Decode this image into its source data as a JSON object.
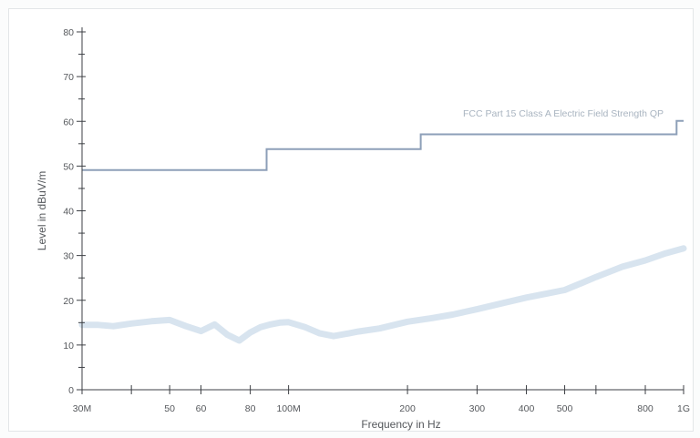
{
  "chart_data": {
    "type": "line",
    "xscale": "log",
    "xlim": [
      30000000,
      1000000000
    ],
    "ylim": [
      0,
      80
    ],
    "xlabel": "Frequency in Hz",
    "ylabel": "Level in dBuV/m",
    "yticks": [
      0,
      10,
      20,
      30,
      40,
      50,
      60,
      70,
      80
    ],
    "xticks": [
      {
        "value": 30000000,
        "label": "30M"
      },
      {
        "value": 40000000,
        "label": ""
      },
      {
        "value": 50000000,
        "label": "50"
      },
      {
        "value": 60000000,
        "label": "60"
      },
      {
        "value": 80000000,
        "label": "80"
      },
      {
        "value": 100000000,
        "label": "100M"
      },
      {
        "value": 200000000,
        "label": "200"
      },
      {
        "value": 300000000,
        "label": "300"
      },
      {
        "value": 400000000,
        "label": "400"
      },
      {
        "value": 500000000,
        "label": "500"
      },
      {
        "value": 600000000,
        "label": ""
      },
      {
        "value": 800000000,
        "label": "800"
      },
      {
        "value": 1000000000,
        "label": "1G"
      }
    ],
    "grid": false,
    "limit_line": {
      "name": "FCC Part 15 Class A  Electric Field Strength QP",
      "color": "#8d9fb8",
      "x": [
        30000000,
        88000000,
        88000000,
        216000000,
        216000000,
        960000000,
        960000000,
        1000000000
      ],
      "y": [
        49.1,
        49.1,
        53.8,
        53.8,
        57.1,
        57.1,
        60.1,
        60.1
      ]
    },
    "measurement": {
      "color": "#d6e3ee",
      "x": [
        30000000,
        33000000,
        36000000,
        40000000,
        45000000,
        50000000,
        55000000,
        60000000,
        65000000,
        70000000,
        75000000,
        80000000,
        85000000,
        90000000,
        95000000,
        100000000,
        110000000,
        120000000,
        130000000,
        140000000,
        150000000,
        170000000,
        200000000,
        230000000,
        260000000,
        300000000,
        350000000,
        400000000,
        450000000,
        500000000,
        550000000,
        600000000,
        700000000,
        800000000,
        900000000,
        1000000000
      ],
      "y": [
        14.5,
        14.5,
        14.2,
        14.8,
        15.3,
        15.6,
        14.2,
        13.1,
        14.6,
        12.3,
        11.0,
        12.8,
        14.0,
        14.6,
        15.0,
        15.1,
        14.0,
        12.6,
        12.0,
        12.5,
        13.0,
        13.7,
        15.2,
        16.0,
        16.8,
        18.0,
        19.4,
        20.6,
        21.5,
        22.3,
        23.8,
        25.2,
        27.5,
        28.9,
        30.5,
        31.6
      ]
    }
  }
}
